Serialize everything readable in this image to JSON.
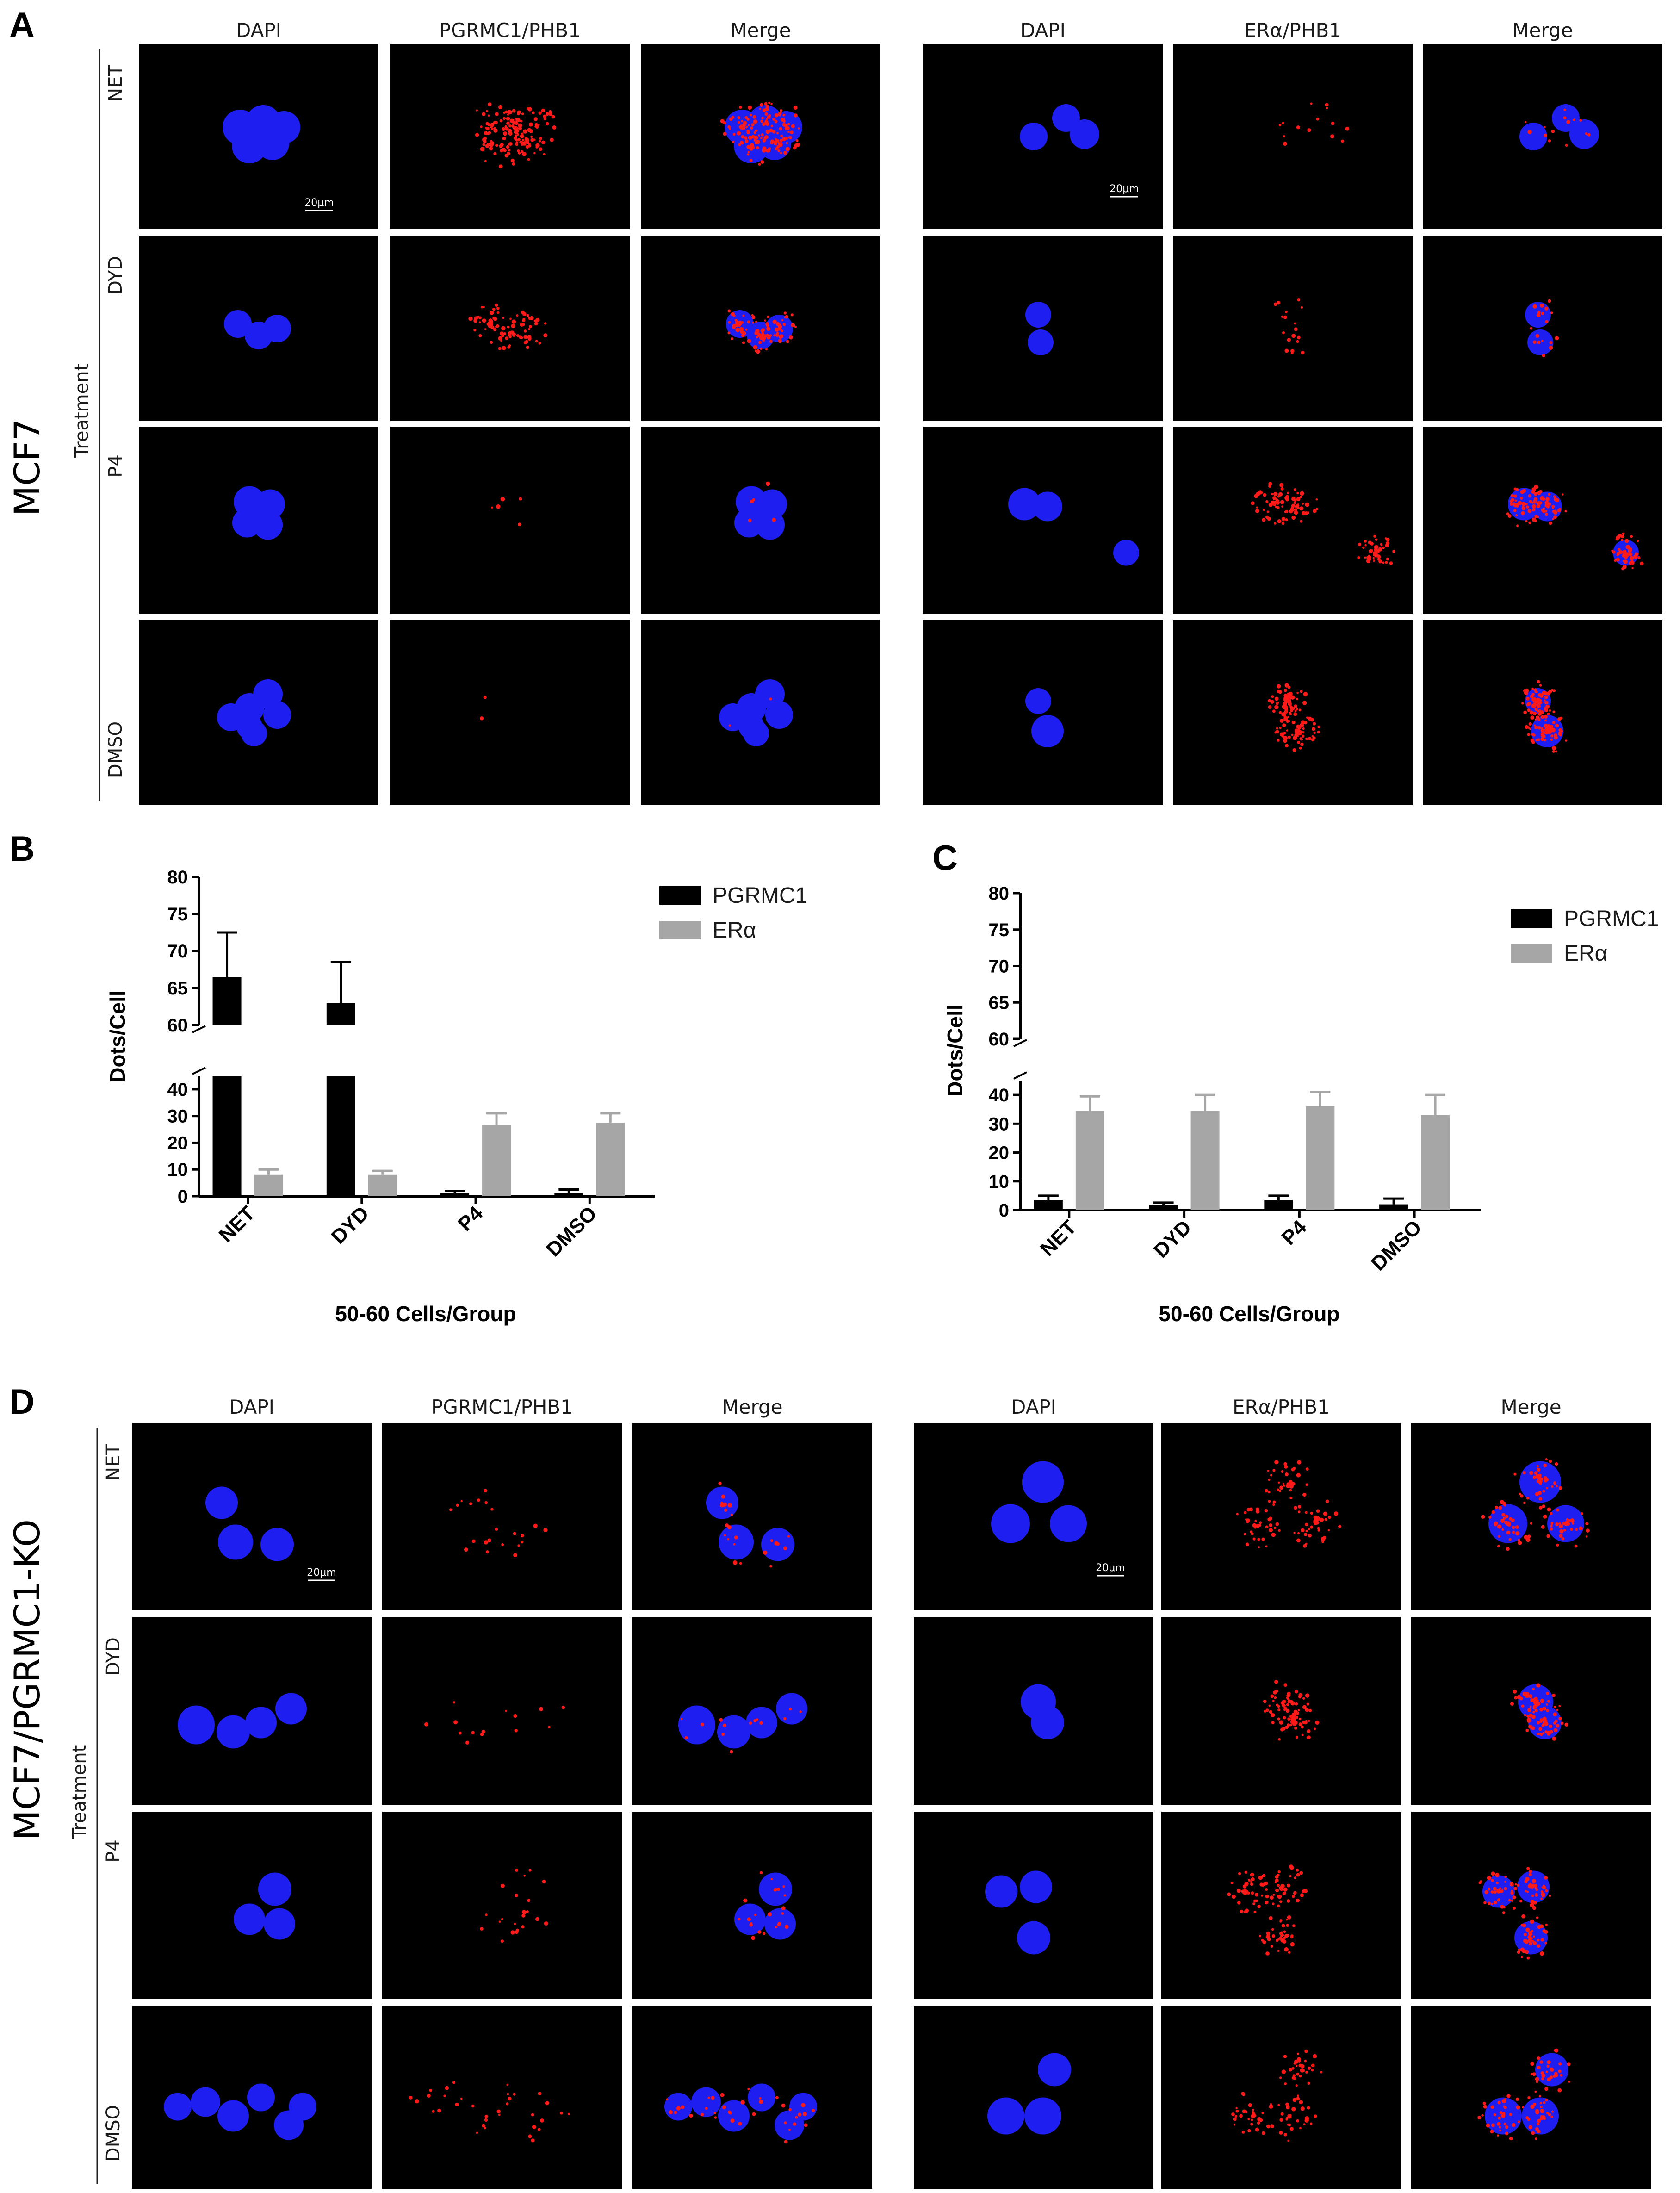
{
  "panel_labels": [
    "A",
    "B",
    "C",
    "D"
  ],
  "microscopy": {
    "channel_headers": {
      "left": [
        "DAPI",
        "PGRMC1/PHB1",
        "Merge"
      ],
      "right": [
        "DAPI",
        "ERα/PHB1",
        "Merge"
      ]
    },
    "rows": [
      "NET",
      "DYD",
      "P4",
      "DMSO"
    ],
    "treatment_label": "Treatment",
    "scale_bar": "20μm",
    "panel_A_cell_line": "MCF7",
    "panel_D_cell_line": "MCF7/PGRMC1-KO"
  },
  "colors": {
    "pgrmc1": "#000000",
    "era": "#a6a6a6",
    "dapi": "#1e1ef0",
    "pla": "#ff1a1a"
  },
  "chart_data": [
    {
      "type": "bar",
      "panel": "B",
      "categories": [
        "NET",
        "DYD",
        "P4",
        "DMSO"
      ],
      "series": [
        {
          "name": "PGRMC1",
          "values": [
            66.5,
            63,
            1.2,
            1.3
          ],
          "errors": [
            6,
            5.5,
            0.8,
            1.2
          ]
        },
        {
          "name": "ERα",
          "values": [
            8,
            8,
            26.5,
            27.5
          ],
          "errors": [
            2,
            1.5,
            4.5,
            3.5
          ]
        }
      ],
      "ylabel": "Dots/Cell",
      "xlabel": "50-60 Cells/Group",
      "y_axis_break": [
        45,
        60
      ],
      "ylim": [
        0,
        80
      ],
      "yticks": [
        "0",
        "10",
        "20",
        "30",
        "40",
        "60",
        "65",
        "70",
        "75",
        "80"
      ],
      "legend": "top-right"
    },
    {
      "type": "bar",
      "panel": "C",
      "categories": [
        "NET",
        "DYD",
        "P4",
        "DMSO"
      ],
      "series": [
        {
          "name": "PGRMC1",
          "values": [
            3.5,
            1.8,
            3.5,
            2
          ],
          "errors": [
            1.5,
            0.8,
            1.5,
            2
          ]
        },
        {
          "name": "ERα",
          "values": [
            34.5,
            34.5,
            36,
            33
          ],
          "errors": [
            5,
            5.5,
            5,
            7
          ]
        }
      ],
      "ylabel": "Dots/Cell",
      "xlabel": "50-60 Cells/Group",
      "y_axis_break": [
        45,
        60
      ],
      "ylim": [
        0,
        80
      ],
      "yticks": [
        "0",
        "10",
        "20",
        "30",
        "40",
        "60",
        "65",
        "70",
        "75",
        "80"
      ],
      "legend": "top-right"
    }
  ]
}
